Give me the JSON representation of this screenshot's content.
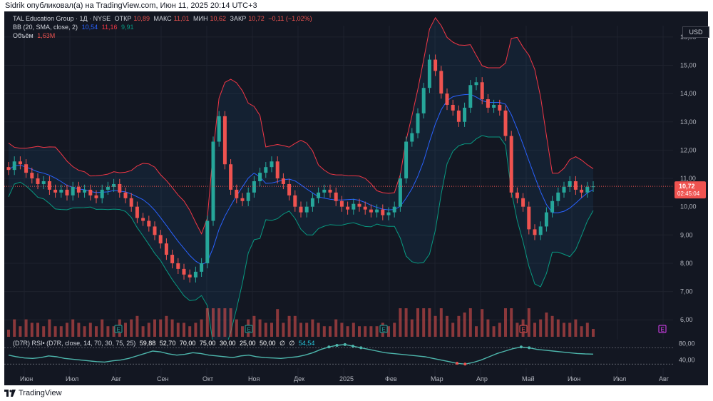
{
  "header": {
    "published": "Sidrik опубликовал(а) на TradingView.com, Июн 11, 2025 20:14 UTC+3"
  },
  "legend": {
    "symbol": "TAL Education Group · 1Д · NYSE",
    "open_label": "ОТКР",
    "open": "10,89",
    "high_label": "МАКС",
    "high": "11,01",
    "low_label": "МИН",
    "low": "10,62",
    "close_label": "ЗАКР",
    "close": "10,72",
    "change": "−0,11 (−1,02%)",
    "bb_label": "BB (20, SMA, close, 2)",
    "bb_basis": "10,54",
    "bb_upper": "11,16",
    "bb_lower": "9,91",
    "volume_label": "Объём",
    "volume": "1,63M",
    "rsi_label": "(D7R) RSI• (D7R, close, 14, 70, 30, 75, 25)",
    "rsi_values": [
      "59,88",
      "52,70",
      "70,00",
      "75,00",
      "30,00",
      "25,00",
      "50,00",
      "∅",
      "∅",
      "54,54"
    ]
  },
  "currency_button": "USD",
  "price_tag": {
    "price": "10,72",
    "countdown": "02:45:04"
  },
  "event_markers": [
    "E",
    "E",
    "E",
    "E",
    "E"
  ],
  "footer": {
    "brand": "TradingView"
  },
  "colors": {
    "background": "#131722",
    "up": "#26a69a",
    "down": "#ef5350",
    "bb_basis": "#2962ff",
    "bb_upper": "#f23645",
    "bb_lower": "#089981",
    "bb_fill": "#2196f3",
    "volume": "#ef5350",
    "rsi_up": "#4db6ac",
    "rsi_down": "#ef5350",
    "event": "#e040fb"
  },
  "chart_data": [
    {
      "type": "candlestick",
      "title": "",
      "price_axis": [
        "16,00",
        "15,00",
        "14,00",
        "13,00",
        "12,00",
        "11,00",
        "10,00",
        "9,00",
        "8,00",
        "7,00",
        "6,00"
      ],
      "ylim": [
        5.4,
        16.4
      ],
      "x_labels": [
        "Июн",
        "Июл",
        "Авг",
        "Сен",
        "Окт",
        "Ноя",
        "Дек",
        "2025",
        "Фев",
        "Мар",
        "Апр",
        "Май",
        "Июн",
        "Июл",
        "Авг"
      ],
      "close_series": [
        11.3,
        11.6,
        11.5,
        11.2,
        11.0,
        10.8,
        10.9,
        10.6,
        10.5,
        10.6,
        10.4,
        10.7,
        10.5,
        10.6,
        10.4,
        10.3,
        10.6,
        10.7,
        10.8,
        10.5,
        10.3,
        10.0,
        9.6,
        9.5,
        9.3,
        9.0,
        8.7,
        8.3,
        8.0,
        7.8,
        7.6,
        7.5,
        7.7,
        8.0,
        9.5,
        12.3,
        13.2,
        11.5,
        10.6,
        10.3,
        10.2,
        10.5,
        10.9,
        11.2,
        11.4,
        11.6,
        11.0,
        10.8,
        10.4,
        10.0,
        9.8,
        10.0,
        10.3,
        10.5,
        10.6,
        10.5,
        10.2,
        10.0,
        9.9,
        10.1,
        10.0,
        9.9,
        9.8,
        9.9,
        9.7,
        9.8,
        10.0,
        11.0,
        12.3,
        12.6,
        13.3,
        14.2,
        15.2,
        14.8,
        14.0,
        13.6,
        13.4,
        13.0,
        13.5,
        14.3,
        14.4,
        13.8,
        13.5,
        13.6,
        13.4,
        12.5,
        10.5,
        10.3,
        10.0,
        9.2,
        9.0,
        9.3,
        9.8,
        10.2,
        10.5,
        10.7,
        10.9,
        10.6,
        10.5,
        10.7,
        10.72
      ],
      "volume_axis_unit": "",
      "rsi_axis": [
        "80,00",
        "40,00"
      ],
      "rsi_series": [
        52,
        48,
        45,
        44,
        46,
        50,
        48,
        44,
        42,
        40,
        38,
        36,
        35,
        38,
        40,
        44,
        50,
        56,
        62,
        60,
        55,
        52,
        54,
        58,
        56,
        52,
        50,
        48,
        46,
        50,
        52,
        48,
        46,
        45,
        44,
        46,
        48,
        52,
        58,
        66,
        72,
        76,
        78,
        74,
        70,
        66,
        62,
        58,
        56,
        54,
        52,
        50,
        48,
        44,
        40,
        36,
        32,
        30,
        34,
        40,
        48,
        56,
        62,
        68,
        72,
        70,
        66,
        64,
        62,
        60,
        58,
        56,
        55,
        54.54
      ]
    }
  ]
}
